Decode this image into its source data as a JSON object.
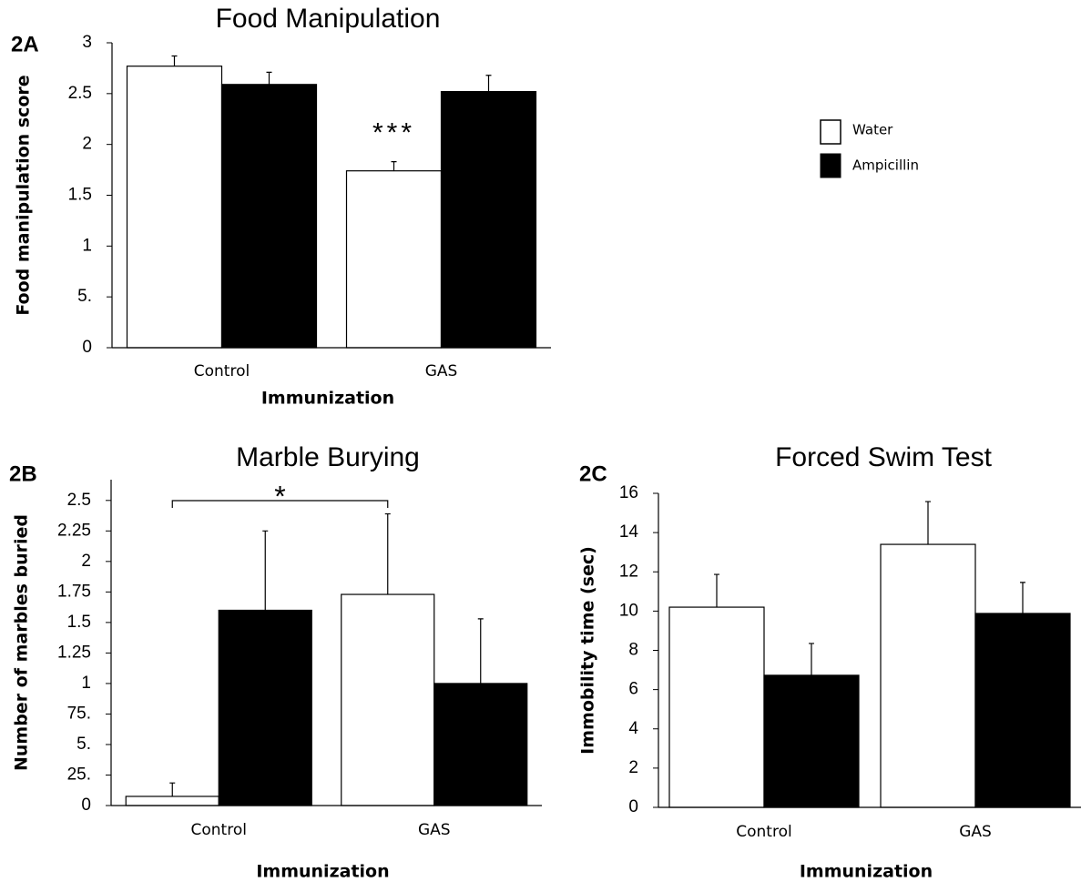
{
  "chart_data": [
    {
      "type": "bar",
      "panel": "2A",
      "title": "Food Manipulation",
      "x_label": "Immunization",
      "y_label": "Food manipulation score",
      "categories": [
        "Control",
        "GAS"
      ],
      "series": [
        {
          "name": "Water",
          "color": "#ffffff",
          "values": [
            2.77,
            1.74
          ],
          "errors": [
            0.1,
            0.09
          ]
        },
        {
          "name": "Ampicillin",
          "color": "#000000",
          "values": [
            2.59,
            2.52
          ],
          "errors": [
            0.12,
            0.16
          ]
        }
      ],
      "ylim": [
        0,
        3
      ],
      "yticks": [
        0,
        {
          "value": 0.5,
          "label": "5."
        },
        1,
        1.5,
        2,
        2.5,
        3
      ],
      "annotation": "***"
    },
    {
      "type": "bar",
      "panel": "2B",
      "title": "Marble Burying",
      "x_label": "Immunization",
      "y_label": "Number of marbles buried",
      "categories": [
        "Control",
        "GAS"
      ],
      "series": [
        {
          "color": "#ffffff",
          "values": [
            0.075,
            1.73
          ],
          "errors": [
            0.11,
            0.66
          ]
        },
        {
          "color": "#000000",
          "values": [
            1.6,
            1.0
          ],
          "errors": [
            0.65,
            0.53
          ]
        }
      ],
      "ylim": [
        0,
        2.67
      ],
      "yticks": [
        0,
        {
          "value": 0.25,
          "label": "25."
        },
        {
          "value": 0.5,
          "label": "5."
        },
        {
          "value": 0.75,
          "label": "75."
        },
        1,
        1.25,
        1.5,
        1.75,
        2,
        2.25,
        2.5
      ],
      "annotation": "*"
    },
    {
      "type": "bar",
      "panel": "2C",
      "title": "Forced Swim Test",
      "x_label": "Immunization",
      "y_label": "Immobility time (sec)",
      "categories": [
        "Control",
        "GAS"
      ],
      "series": [
        {
          "color": "#ffffff",
          "values": [
            10.2,
            13.4
          ],
          "errors": [
            1.67,
            2.18
          ]
        },
        {
          "color": "#000000",
          "values": [
            6.73,
            9.88
          ],
          "errors": [
            1.62,
            1.58
          ]
        }
      ],
      "ylim": [
        0,
        16
      ],
      "yticks": [
        0,
        2,
        4,
        6,
        8,
        10,
        12,
        14,
        16
      ]
    }
  ]
}
